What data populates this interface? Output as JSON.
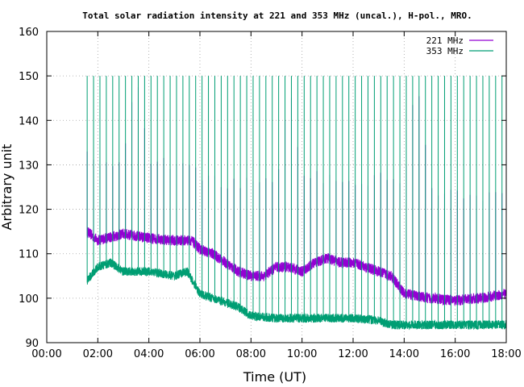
{
  "chart_data": {
    "type": "line",
    "title": "Total solar radiation intensity at 221 and 353 MHz (uncal.), H-pol., MRO.",
    "xlabel": "Time (UT)",
    "ylabel": "Arbitrary unit",
    "xlim": [
      "00:00",
      "18:00"
    ],
    "ylim": [
      90,
      160
    ],
    "grid": true,
    "legend_position": "top-right",
    "x_ticks": [
      "00:00",
      "02:00",
      "04:00",
      "06:00",
      "08:00",
      "10:00",
      "12:00",
      "14:00",
      "16:00",
      "18:00"
    ],
    "y_ticks": [
      "90",
      "100",
      "110",
      "120",
      "130",
      "140",
      "150",
      "160"
    ],
    "series": [
      {
        "name": "221 MHz",
        "color": "#9400d3",
        "baseline": [
          [
            "01:35",
            115
          ],
          [
            "02:00",
            113
          ],
          [
            "03:00",
            114.5
          ],
          [
            "04:00",
            113.5
          ],
          [
            "05:00",
            113
          ],
          [
            "05:40",
            113
          ],
          [
            "06:00",
            111
          ],
          [
            "06:30",
            110
          ],
          [
            "07:00",
            108
          ],
          [
            "07:30",
            106
          ],
          [
            "08:00",
            105
          ],
          [
            "08:30",
            105
          ],
          [
            "09:00",
            107
          ],
          [
            "09:30",
            107
          ],
          [
            "10:00",
            106
          ],
          [
            "10:30",
            108
          ],
          [
            "11:00",
            109
          ],
          [
            "11:30",
            108
          ],
          [
            "12:00",
            108
          ],
          [
            "12:30",
            107
          ],
          [
            "13:00",
            106
          ],
          [
            "13:30",
            105
          ],
          [
            "14:00",
            101
          ],
          [
            "15:00",
            100
          ],
          [
            "16:00",
            99.5
          ],
          [
            "17:00",
            100
          ],
          [
            "18:00",
            101
          ]
        ],
        "spike_peaks": [
          [
            "01:35",
            132
          ],
          [
            "02:00",
            130
          ],
          [
            "03:00",
            131
          ],
          [
            "03:30",
            150
          ],
          [
            "04:00",
            131
          ],
          [
            "05:00",
            130
          ],
          [
            "05:30",
            131
          ],
          [
            "06:00",
            128
          ],
          [
            "07:00",
            126
          ],
          [
            "08:00",
            126
          ],
          [
            "09:00",
            126
          ],
          [
            "09:30",
            148
          ],
          [
            "10:00",
            128
          ],
          [
            "11:00",
            127
          ],
          [
            "12:00",
            126
          ],
          [
            "13:00",
            127
          ],
          [
            "14:00",
            125
          ],
          [
            "14:30",
            151
          ],
          [
            "15:00",
            124
          ],
          [
            "16:00",
            123
          ],
          [
            "17:00",
            123
          ],
          [
            "18:00",
            124
          ]
        ]
      },
      {
        "name": "353 MHz",
        "color": "#009e73",
        "baseline": [
          [
            "01:35",
            104
          ],
          [
            "02:00",
            107
          ],
          [
            "02:30",
            108
          ],
          [
            "03:00",
            106
          ],
          [
            "04:00",
            106
          ],
          [
            "05:00",
            105
          ],
          [
            "05:30",
            106
          ],
          [
            "06:00",
            101
          ],
          [
            "06:30",
            100
          ],
          [
            "07:00",
            99
          ],
          [
            "07:30",
            98
          ],
          [
            "08:00",
            96
          ],
          [
            "09:00",
            95.5
          ],
          [
            "10:00",
            95.5
          ],
          [
            "11:00",
            95.5
          ],
          [
            "12:00",
            95.5
          ],
          [
            "13:00",
            95
          ],
          [
            "13:30",
            94
          ],
          [
            "14:00",
            94
          ],
          [
            "15:00",
            94
          ],
          [
            "16:00",
            94
          ],
          [
            "17:00",
            94
          ],
          [
            "18:00",
            94
          ]
        ],
        "spike_peak": 150
      }
    ]
  }
}
